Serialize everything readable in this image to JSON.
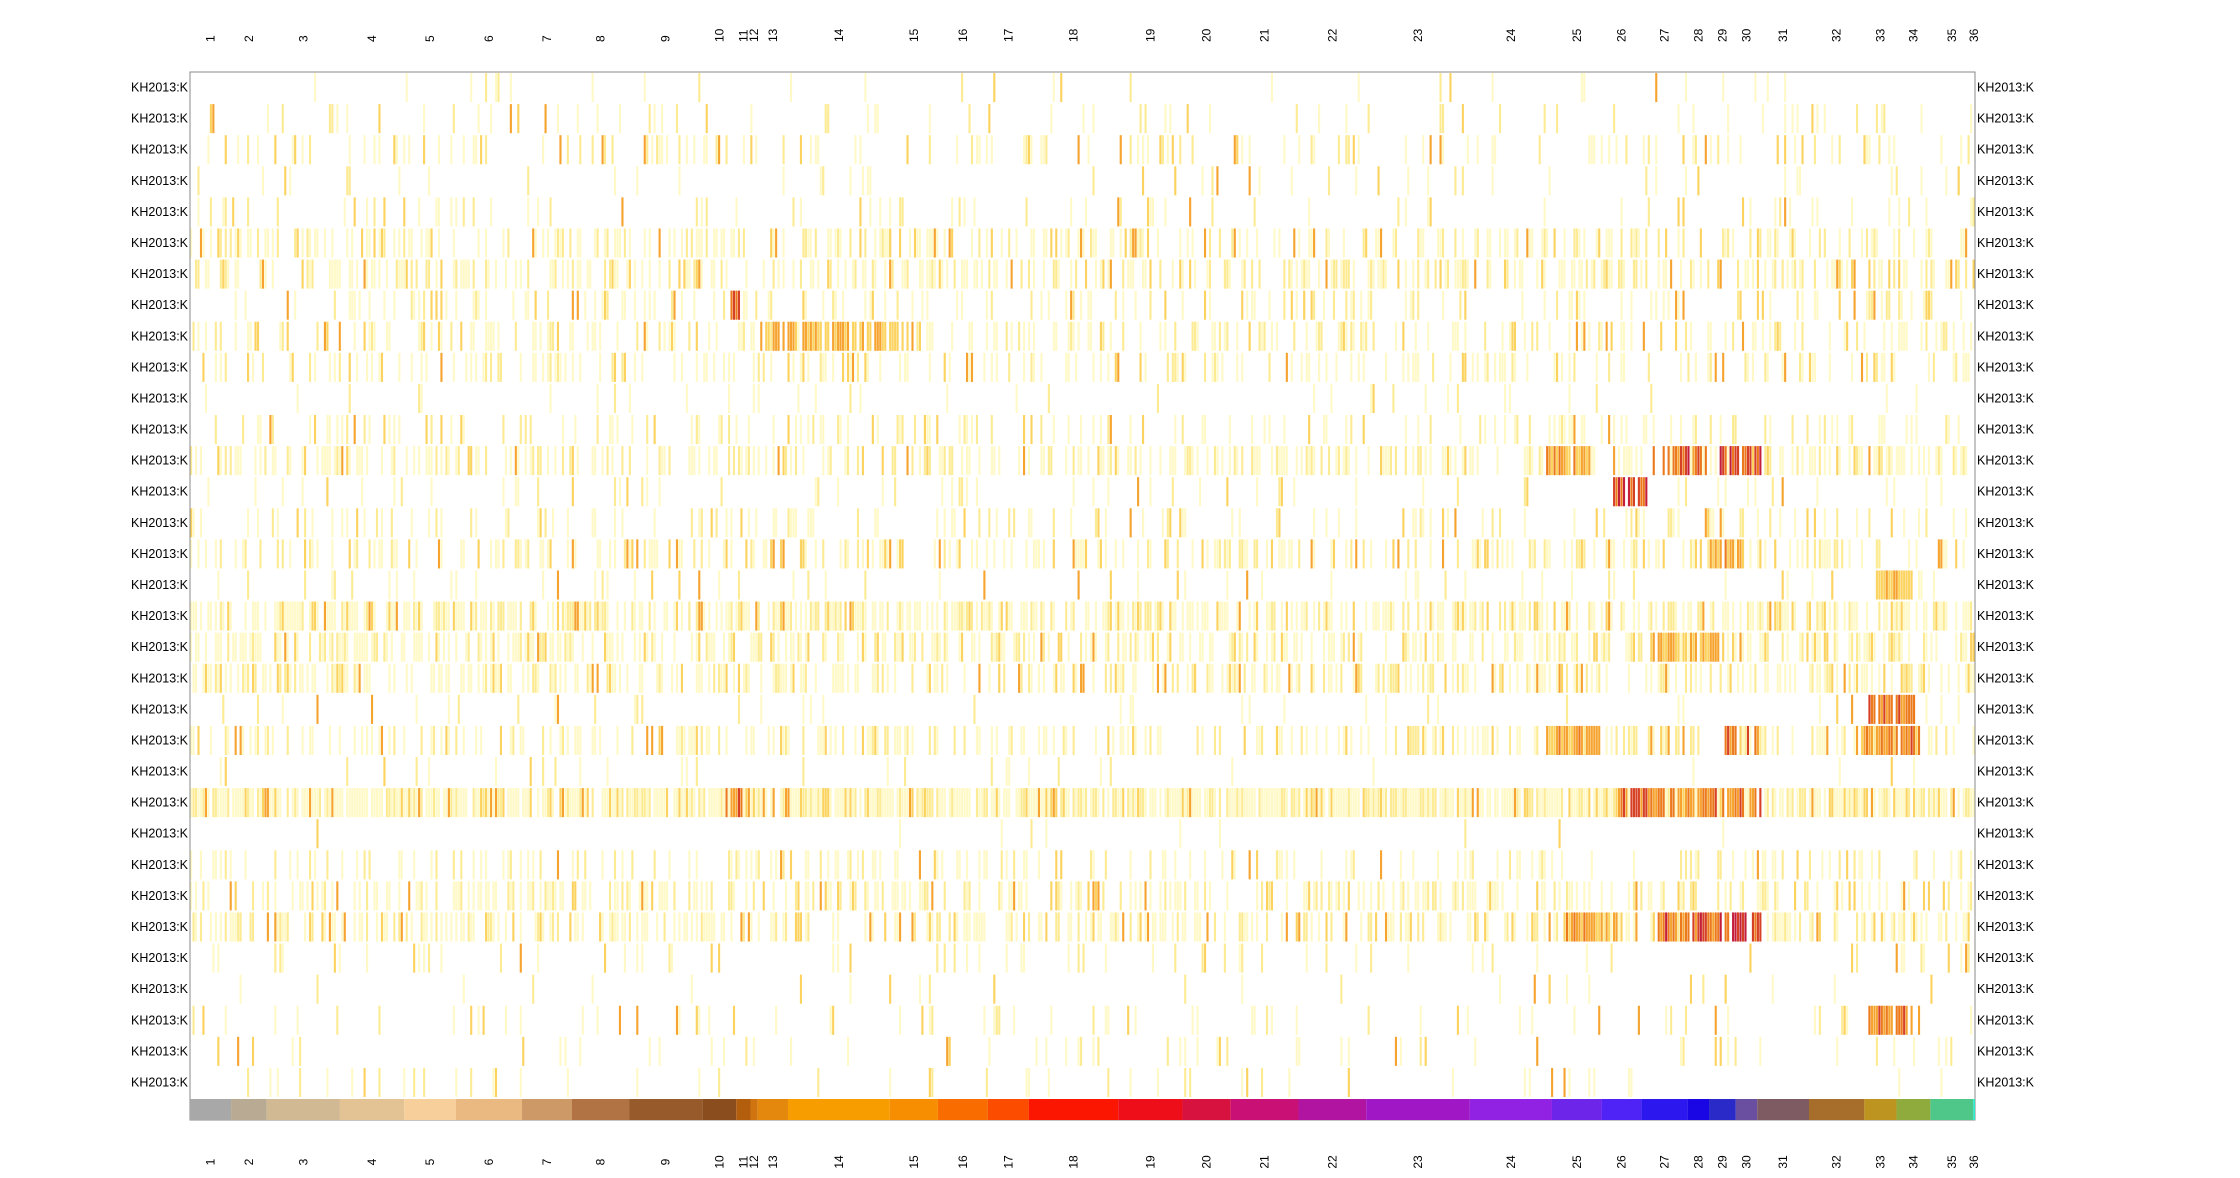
{
  "chart_data": {
    "type": "heatmap",
    "title": "",
    "xlabel": "",
    "ylabel": "",
    "x_categories": [
      "1",
      "2",
      "3",
      "4",
      "5",
      "6",
      "7",
      "8",
      "9",
      "10",
      "11",
      "12",
      "13",
      "14",
      "15",
      "16",
      "17",
      "18",
      "19",
      "20",
      "21",
      "22",
      "23",
      "24",
      "25",
      "26",
      "27",
      "28",
      "29",
      "30",
      "31",
      "32",
      "33",
      "34",
      "35",
      "36"
    ],
    "row_labels": [
      "KH2013:K",
      "KH2013:K",
      "KH2013:K",
      "KH2013:K",
      "KH2013:K",
      "KH2013:K",
      "KH2013:K",
      "KH2013:K",
      "KH2013:K",
      "KH2013:K",
      "KH2013:K",
      "KH2013:K",
      "KH2013:K",
      "KH2013:K",
      "KH2013:K",
      "KH2013:K",
      "KH2013:K",
      "KH2013:K",
      "KH2013:K",
      "KH2013:K",
      "KH2013:K",
      "KH2013:K",
      "KH2013:K",
      "KH2013:K",
      "KH2013:K",
      "KH2013:K",
      "KH2013:K",
      "KH2013:K",
      "KH2013:K",
      "KH2013:K",
      "KH2013:K",
      "KH2013:K",
      "KH2013:K"
    ],
    "category_fraction_bounds": [
      0.0,
      0.023,
      0.043,
      0.084,
      0.12,
      0.149,
      0.186,
      0.214,
      0.246,
      0.287,
      0.306,
      0.314,
      0.318,
      0.335,
      0.392,
      0.419,
      0.447,
      0.47,
      0.52,
      0.556,
      0.583,
      0.621,
      0.659,
      0.717,
      0.763,
      0.791,
      0.813,
      0.839,
      0.878,
      0.851,
      0.866,
      0.907,
      0.938,
      0.956,
      0.975,
      0.999,
      1.0
    ],
    "category_colors": [
      "#a8a8a8",
      "#b9ab93",
      "#d0b993",
      "#e3c394",
      "#f6cf9a",
      "#eab981",
      "#cd9a67",
      "#b17344",
      "#965a2b",
      "#8a4e1e",
      "#b25e0d",
      "#d07410",
      "#e4880d",
      "#f79d00",
      "#f78d00",
      "#f86c00",
      "#fc4c00",
      "#fa1600",
      "#ed0e1a",
      "#d8123f",
      "#c91175",
      "#b114a0",
      "#a017c6",
      "#9122e4",
      "#6d25ea",
      "#4f22f5",
      "#2c17ee",
      "#1a05e4",
      "#2a2ac8",
      "#6a4fa0",
      "#7e5b62",
      "#a66e2a",
      "#bd9420",
      "#8faa3d",
      "#4fc789",
      "#2ee6c8"
    ],
    "color_scale": [
      "#ffffff",
      "#fff9c8",
      "#fdeb94",
      "#fbd35e",
      "#f6a42f",
      "#ec7a1d",
      "#d64024",
      "#c41e3a",
      "#7a1fa2"
    ],
    "value_range": [
      0,
      1
    ],
    "series_seed": 20130411,
    "hotspots": [
      {
        "row": 12,
        "from": 0.76,
        "to": 0.785,
        "level": 0.65
      },
      {
        "row": 12,
        "from": 0.82,
        "to": 0.85,
        "level": 0.85
      },
      {
        "row": 12,
        "from": 0.857,
        "to": 0.88,
        "level": 0.95
      },
      {
        "row": 13,
        "from": 0.797,
        "to": 0.817,
        "level": 0.9
      },
      {
        "row": 7,
        "from": 0.303,
        "to": 0.309,
        "level": 0.85
      },
      {
        "row": 8,
        "from": 0.32,
        "to": 0.41,
        "level": 0.55
      },
      {
        "row": 20,
        "from": 0.94,
        "to": 0.967,
        "level": 0.75
      },
      {
        "row": 21,
        "from": 0.938,
        "to": 0.97,
        "level": 0.7
      },
      {
        "row": 21,
        "from": 0.76,
        "to": 0.79,
        "level": 0.6
      },
      {
        "row": 21,
        "from": 0.86,
        "to": 0.88,
        "level": 0.7
      },
      {
        "row": 23,
        "from": 0.3,
        "to": 0.31,
        "level": 0.7
      },
      {
        "row": 23,
        "from": 0.8,
        "to": 0.88,
        "level": 0.75
      },
      {
        "row": 27,
        "from": 0.82,
        "to": 0.86,
        "level": 0.85
      },
      {
        "row": 27,
        "from": 0.86,
        "to": 0.88,
        "level": 0.95
      },
      {
        "row": 27,
        "from": 0.77,
        "to": 0.8,
        "level": 0.6
      },
      {
        "row": 30,
        "from": 0.94,
        "to": 0.97,
        "level": 0.75
      },
      {
        "row": 16,
        "from": 0.945,
        "to": 0.965,
        "level": 0.55
      },
      {
        "row": 15,
        "from": 0.85,
        "to": 0.87,
        "level": 0.6
      },
      {
        "row": 18,
        "from": 0.82,
        "to": 0.86,
        "level": 0.55
      }
    ],
    "row_densities": [
      0.04,
      0.1,
      0.22,
      0.06,
      0.12,
      0.38,
      0.42,
      0.25,
      0.3,
      0.28,
      0.06,
      0.22,
      0.42,
      0.08,
      0.18,
      0.35,
      0.06,
      0.55,
      0.45,
      0.48,
      0.05,
      0.38,
      0.05,
      0.85,
      0.02,
      0.25,
      0.4,
      0.45,
      0.12,
      0.03,
      0.1,
      0.07,
      0.08
    ],
    "grid": false,
    "legend": "none"
  }
}
